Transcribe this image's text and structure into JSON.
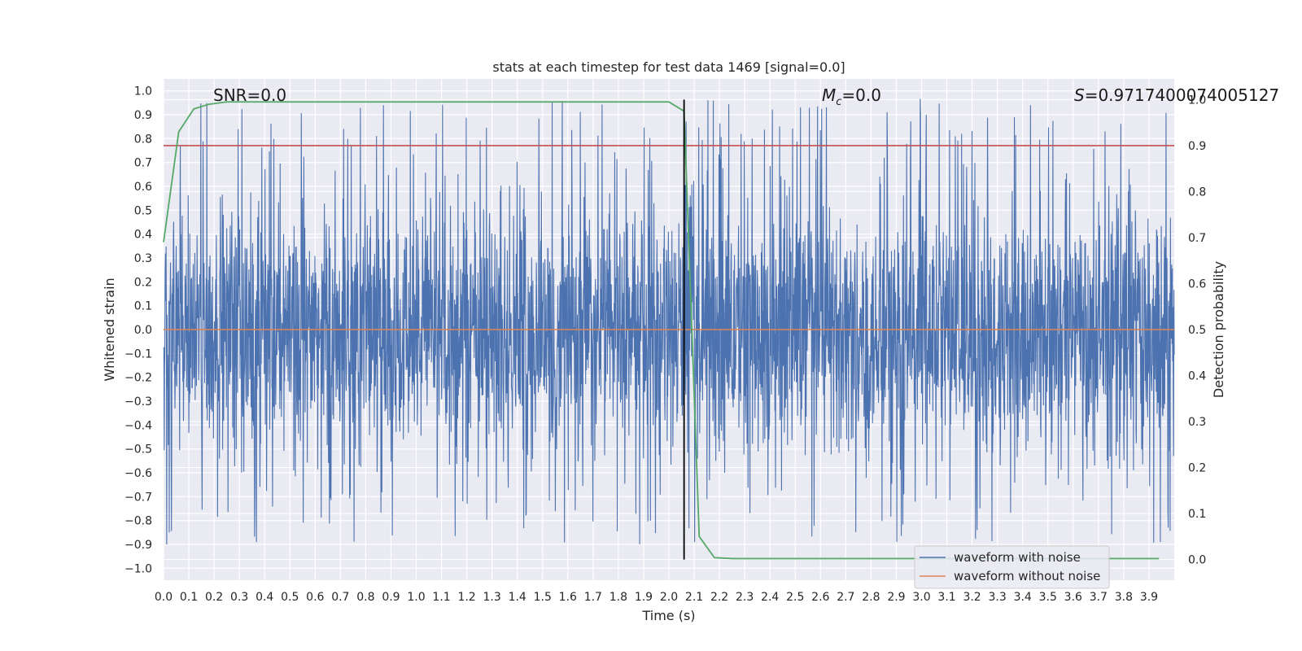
{
  "chart_data": {
    "type": "line",
    "title": "stats at each timestep for test data 1469 [signal=0.0]",
    "xlabel": "Time (s)",
    "ylabel": "Whitened strain",
    "y2label": "Detection probability",
    "xlim": [
      0.0,
      4.0
    ],
    "ylim": [
      -1.05,
      1.05
    ],
    "y2lim": [
      -0.045,
      1.045
    ],
    "xticks": [
      "0.0",
      "0.1",
      "0.2",
      "0.3",
      "0.4",
      "0.5",
      "0.6",
      "0.7",
      "0.8",
      "0.9",
      "1.0",
      "1.1",
      "1.2",
      "1.3",
      "1.4",
      "1.5",
      "1.6",
      "1.7",
      "1.8",
      "1.9",
      "2.0",
      "2.1",
      "2.2",
      "2.3",
      "2.4",
      "2.5",
      "2.6",
      "2.7",
      "2.8",
      "2.9",
      "3.0",
      "3.1",
      "3.2",
      "3.3",
      "3.4",
      "3.5",
      "3.6",
      "3.7",
      "3.8",
      "3.9"
    ],
    "yticks": [
      "1.0",
      "0.9",
      "0.8",
      "0.7",
      "0.6",
      "0.5",
      "0.4",
      "0.3",
      "0.2",
      "0.1",
      "0.0",
      "-0.1",
      "-0.2",
      "-0.3",
      "-0.4",
      "-0.5",
      "-0.6",
      "-0.7",
      "-0.8",
      "-0.9",
      "-1.0"
    ],
    "y2ticks": [
      "1.0",
      "0.9",
      "0.8",
      "0.7",
      "0.6",
      "0.5",
      "0.4",
      "0.3",
      "0.2",
      "0.1",
      "0.0"
    ],
    "grid": true,
    "legend_position": "lower-right",
    "colors": {
      "noise": "#4c72b0",
      "clean": "#dd8452",
      "probability": "#55a868",
      "threshold": "#c44e52",
      "marker": "#000000",
      "plot_bg": "#eaeaf2",
      "grid": "#ffffff"
    },
    "series": [
      {
        "name": "waveform with noise",
        "axis": "left",
        "note": "dense noise, approx. uniform in [-0.9, 1.0]"
      },
      {
        "name": "waveform without noise",
        "axis": "left",
        "x": [
          0.0,
          4.0
        ],
        "values": [
          0.0,
          0.0
        ]
      },
      {
        "name": "detection probability",
        "axis": "right",
        "x": [
          0.0,
          0.06,
          0.12,
          0.18,
          0.25,
          1.0,
          1.5,
          2.0,
          2.06,
          2.12,
          2.18,
          2.25,
          3.0,
          3.94
        ],
        "values": [
          0.69,
          0.93,
          0.98,
          0.99,
          0.995,
          0.995,
          0.995,
          0.995,
          0.975,
          0.05,
          0.004,
          0.002,
          0.002,
          0.002
        ]
      },
      {
        "name": "threshold",
        "axis": "right",
        "x": [
          0.0,
          4.0
        ],
        "values": [
          0.9,
          0.9
        ]
      }
    ],
    "vline": {
      "x": 2.06,
      "y2_from": 0.0,
      "y2_to": 1.0
    },
    "annotations": {
      "snr": "SNR=0.0",
      "mc_prefix": "M",
      "mc_sub": "c",
      "mc_suffix": "=0.0",
      "s_prefix": "S",
      "s_suffix": "=0.9717400074005127"
    },
    "legend": [
      "waveform with noise",
      "waveform without noise"
    ]
  }
}
